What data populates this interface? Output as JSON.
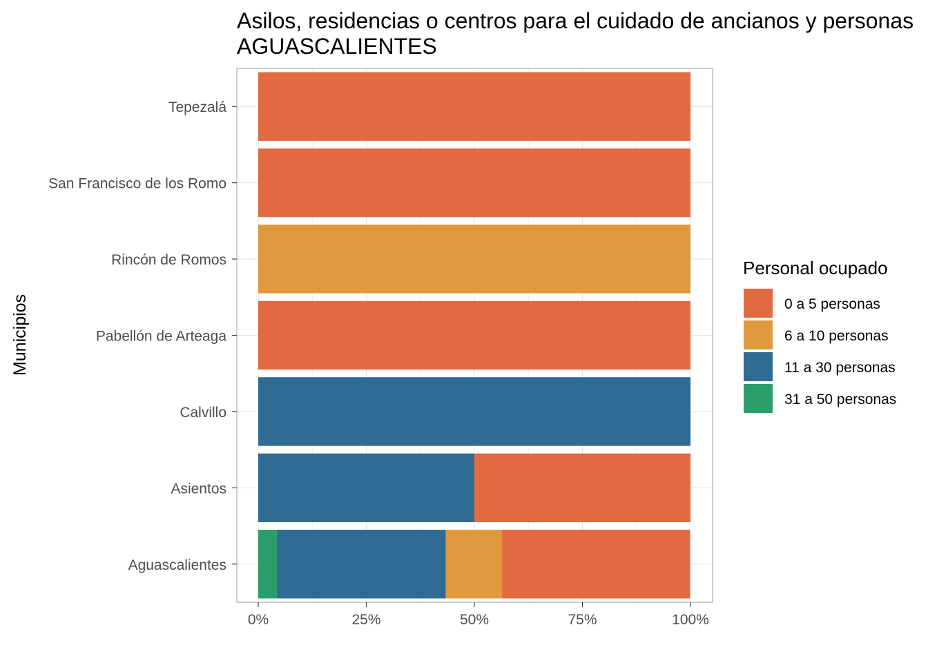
{
  "chart_data": {
    "type": "bar",
    "orientation": "horizontal",
    "stacked": "percent",
    "title": "Asilos, residencias o centros para el cuidado de ancianos y personas",
    "subtitle": "AGUASCALIENTES",
    "xlabel": "",
    "ylabel": "Municipios",
    "xlim": [
      0,
      100
    ],
    "x_ticks": [
      "0%",
      "25%",
      "50%",
      "75%",
      "100%"
    ],
    "grid": true,
    "legend_position": "right",
    "legend_title": "Personal ocupado",
    "categories": [
      "Aguascalientes",
      "Asientos",
      "Calvillo",
      "Pabellón de Arteaga",
      "Rincón de Romos",
      "San Francisco de los Romo",
      "Tepezalá"
    ],
    "series": [
      {
        "name": "31 a 50 personas",
        "color": "#2a9d6a",
        "values": [
          4.3,
          0,
          0,
          0,
          0,
          0,
          0
        ]
      },
      {
        "name": "11 a 30 personas",
        "color": "#2f6b92",
        "values": [
          39.1,
          50,
          100,
          0,
          0,
          0,
          0
        ]
      },
      {
        "name": "6 a 10 personas",
        "color": "#e1993d",
        "values": [
          13.0,
          0,
          0,
          0,
          100,
          0,
          0
        ]
      },
      {
        "name": "0 a 5 personas",
        "color": "#e26a40",
        "values": [
          43.5,
          50,
          0,
          100,
          0,
          100,
          100
        ]
      }
    ],
    "legend_order": [
      "0 a 5 personas",
      "6 a 10 personas",
      "11 a 30 personas",
      "31 a 50 personas"
    ]
  }
}
